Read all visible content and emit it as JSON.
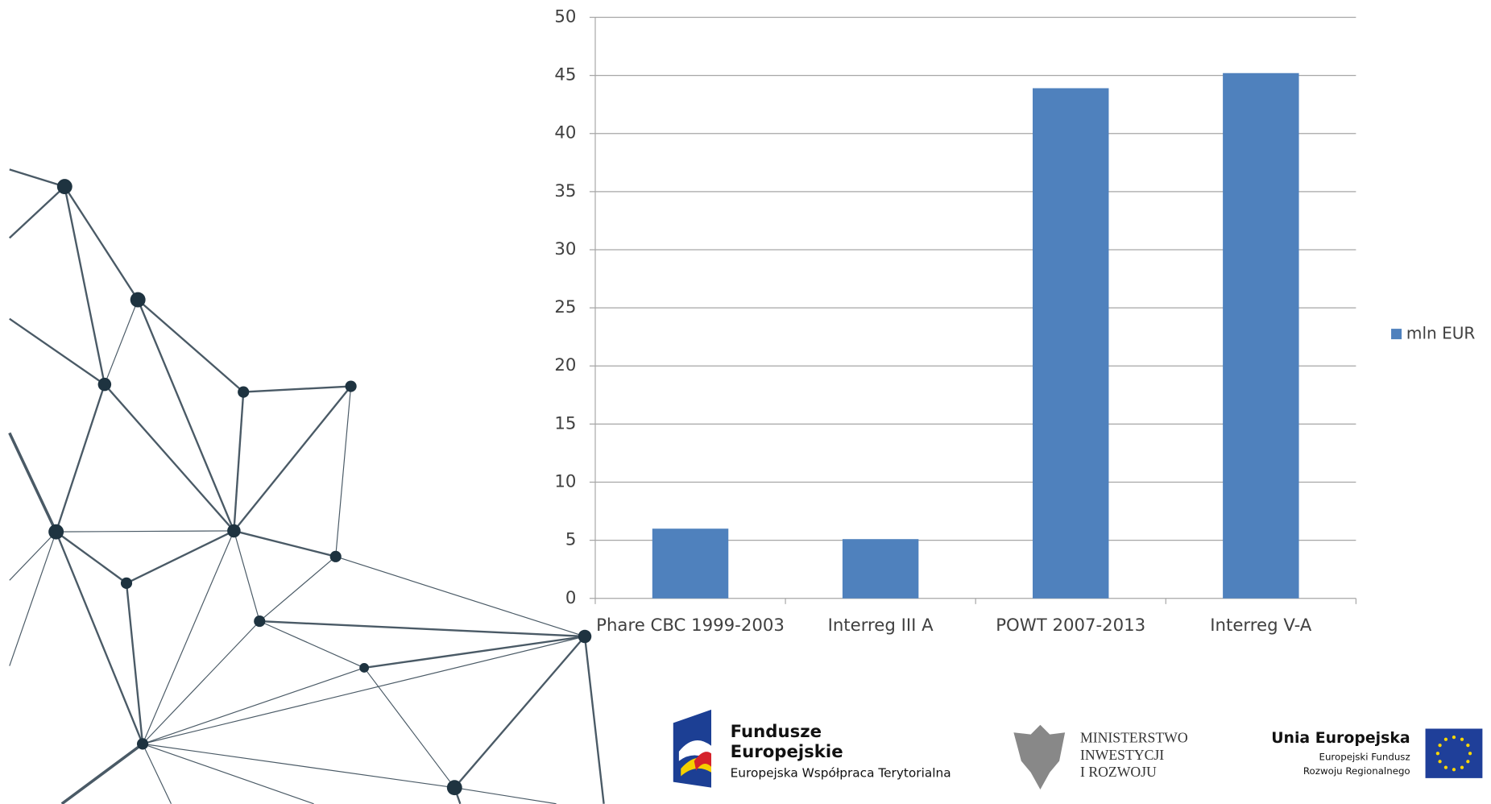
{
  "chart_data": {
    "type": "bar",
    "categories": [
      "Phare CBC 1999-2003",
      "Interreg III A",
      "POWT 2007-2013",
      "Interreg V-A"
    ],
    "series": [
      {
        "name": "mln EUR",
        "color": "#4f81bd",
        "values": [
          6.0,
          5.1,
          43.9,
          45.2
        ]
      }
    ],
    "ylim": [
      0,
      50
    ],
    "yticks": [
      0,
      5,
      10,
      15,
      20,
      25,
      30,
      35,
      40,
      45,
      50
    ],
    "grid": true,
    "legend": "right"
  },
  "logos": {
    "funds": {
      "title_line1": "Fundusze",
      "title_line2": "Europejskie",
      "subtitle": "Europejska Współpraca Terytorialna"
    },
    "ministry": {
      "line1": "MINISTERSTWO",
      "line2": "INWESTYCJI",
      "line3": "I ROZWOJU"
    },
    "eu": {
      "title": "Unia Europejska",
      "line1": "Europejski Fundusz",
      "line2": "Rozwoju Regionalnego"
    }
  }
}
